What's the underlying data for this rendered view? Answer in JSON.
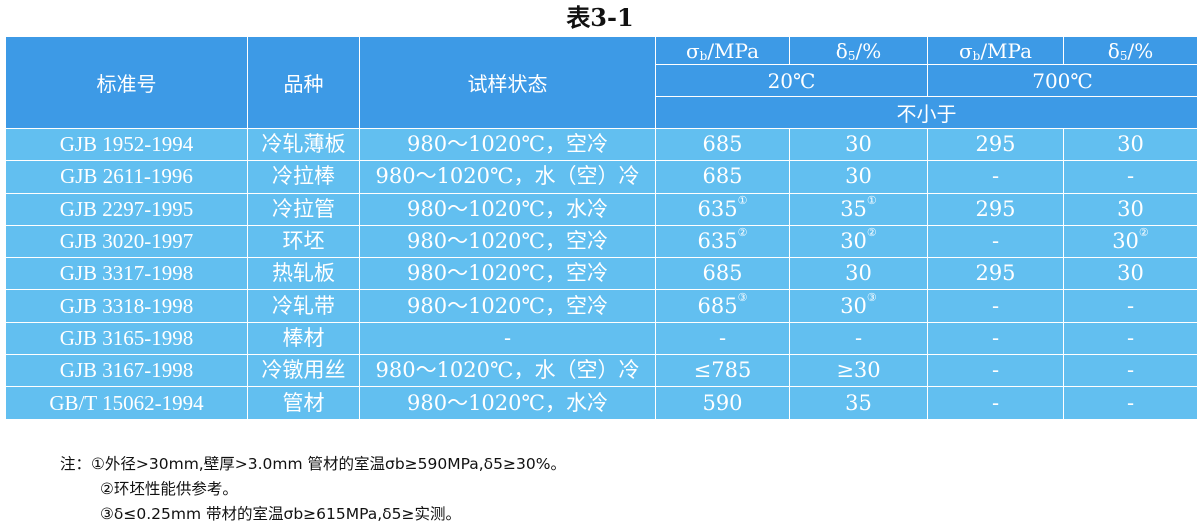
{
  "title": "表3-1",
  "header": {
    "col_standard": "标准号",
    "col_variety": "品种",
    "col_condition": "试样状态",
    "sigma_label": "σ",
    "sigma_sub": "b",
    "sigma_unit": "/MPa",
    "delta_label": "δ",
    "delta_sub": "5",
    "delta_unit": "/%",
    "temp_20": "20℃",
    "temp_700": "700℃",
    "not_less_than": "不小于"
  },
  "rows": [
    {
      "standard": "GJB 1952-1994",
      "variety": "冷轧薄板",
      "condition": "980～1020℃，空冷",
      "s20": "685",
      "s20_note": "",
      "d20": "30",
      "d20_note": "",
      "s700": "295",
      "d700": "30",
      "d700_note": ""
    },
    {
      "standard": "GJB 2611-1996",
      "variety": "冷拉棒",
      "condition": "980～1020℃，水（空）冷",
      "s20": "685",
      "s20_note": "",
      "d20": "30",
      "d20_note": "",
      "s700": "-",
      "d700": "-",
      "d700_note": ""
    },
    {
      "standard": "GJB 2297-1995",
      "variety": "冷拉管",
      "condition": "980～1020℃，水冷",
      "s20": "635",
      "s20_note": "①",
      "d20": "35",
      "d20_note": "①",
      "s700": "295",
      "d700": "30",
      "d700_note": ""
    },
    {
      "standard": "GJB 3020-1997",
      "variety": "环坯",
      "condition": "980～1020℃，空冷",
      "s20": "635",
      "s20_note": "②",
      "d20": "30",
      "d20_note": "②",
      "s700": "-",
      "d700": "30",
      "d700_note": "②"
    },
    {
      "standard": "GJB 3317-1998",
      "variety": "热轧板",
      "condition": "980～1020℃，空冷",
      "s20": "685",
      "s20_note": "",
      "d20": "30",
      "d20_note": "",
      "s700": "295",
      "d700": "30",
      "d700_note": ""
    },
    {
      "standard": "GJB 3318-1998",
      "variety": "冷轧带",
      "condition": "980～1020℃，空冷",
      "s20": "685",
      "s20_note": "③",
      "d20": "30",
      "d20_note": "③",
      "s700": "-",
      "d700": "-",
      "d700_note": ""
    },
    {
      "standard": "GJB 3165-1998",
      "variety": "棒材",
      "condition": "-",
      "s20": "-",
      "s20_note": "",
      "d20": "-",
      "d20_note": "",
      "s700": "-",
      "d700": "-",
      "d700_note": ""
    },
    {
      "standard": "GJB 3167-1998",
      "variety": "冷镦用丝",
      "condition": "980～1020℃，水（空）冷",
      "s20": "≤785",
      "s20_note": "",
      "d20": "≥30",
      "d20_note": "",
      "s700": "-",
      "d700": "-",
      "d700_note": ""
    },
    {
      "standard": "GB/T 15062-1994",
      "variety": "管材",
      "condition": "980～1020℃，水冷",
      "s20": "590",
      "s20_note": "",
      "d20": "35",
      "d20_note": "",
      "s700": "-",
      "d700": "-",
      "d700_note": ""
    }
  ],
  "notes": {
    "line1": "注：①外径>30mm,壁厚>3.0mm 管材的室温σb≥590MPa,δ5≥30%。",
    "line2": "②环坯性能供参考。",
    "line3": "③δ≤0.25mm 带材的室温σb≥615MPa,δ5≥实测。"
  },
  "colors": {
    "header_bg": "#3d9ae6",
    "body_bg": "#62bff0",
    "text": "#ffffff"
  }
}
